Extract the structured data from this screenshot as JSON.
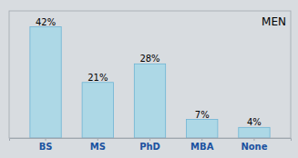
{
  "chart_data": {
    "type": "bar",
    "categories": [
      "BS",
      "MS",
      "PhD",
      "MBA",
      "None"
    ],
    "values": [
      42,
      21,
      28,
      7,
      4
    ],
    "value_labels": [
      "42%",
      "21%",
      "28%",
      "7%",
      "4%"
    ],
    "data_labels": true,
    "color": "#ADD8E6",
    "ylim": [
      0,
      48
    ],
    "tick_labels": "x",
    "annotations": [
      "MEN"
    ]
  }
}
